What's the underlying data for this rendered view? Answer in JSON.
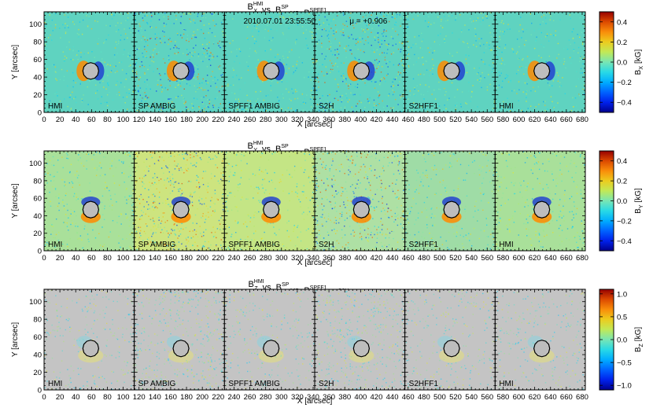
{
  "chart_data": [
    {
      "type": "heatmap",
      "component": "X",
      "title_parts": [
        "B",
        "HMI",
        "vs",
        "B",
        "SP",
        "vs",
        "B",
        "SPFF1",
        "vs",
        "B",
        "S2H",
        "vs",
        "B",
        "S2HFF1",
        "vs",
        "B",
        "HMI"
      ],
      "title_sub": "X",
      "annotations": [
        "2010.07.01  23:55:50",
        "μ = +0.906"
      ],
      "panel_labels": [
        "HMI",
        "SP  AMBIG",
        "SPFF1  AMBIG",
        "S2H",
        "S2HFF1",
        "HMI"
      ],
      "xlabel": "X [arcsec]",
      "ylabel": "Y [arcsec]",
      "x_ticks": [
        0,
        20,
        40,
        60,
        80,
        100,
        120,
        140,
        160,
        180,
        200,
        220,
        240,
        260,
        280,
        300,
        320,
        340,
        360,
        380,
        400,
        420,
        440,
        460,
        480,
        500,
        520,
        540,
        560,
        580,
        600,
        620,
        640,
        660,
        680
      ],
      "y_ticks": [
        0,
        20,
        40,
        60,
        80,
        100
      ],
      "xlim": [
        0,
        684
      ],
      "ylim": [
        0,
        114
      ],
      "colorbar": {
        "label": "B",
        "sub": "X",
        "unit": "[kG]",
        "ticks": [
          0.4,
          0.2,
          0.0,
          -0.2,
          -0.4
        ],
        "range": [
          -0.5,
          0.5
        ]
      },
      "panel_x_ranges": [
        [
          0,
          114
        ],
        [
          114,
          228
        ],
        [
          228,
          342
        ],
        [
          342,
          456
        ],
        [
          456,
          570
        ],
        [
          570,
          684
        ]
      ],
      "spot_center": [
        59,
        47
      ],
      "spot_radius": 10
    },
    {
      "type": "heatmap",
      "component": "Y",
      "title_parts": [
        "B",
        "HMI",
        "vs",
        "B",
        "SP",
        "vs",
        "B",
        "SPFF1",
        "vs",
        "B",
        "S2H",
        "vs",
        "B",
        "S2HFF1",
        "vs",
        "B",
        "HMI"
      ],
      "title_sub": "Y",
      "annotations": [],
      "panel_labels": [
        "HMI",
        "SP  AMBIG",
        "SPFF1  AMBIG",
        "S2H",
        "S2HFF1",
        "HMI"
      ],
      "xlabel": "X [arcsec]",
      "ylabel": "Y [arcsec]",
      "x_ticks": [
        0,
        20,
        40,
        60,
        80,
        100,
        120,
        140,
        160,
        180,
        200,
        220,
        240,
        260,
        280,
        300,
        320,
        340,
        360,
        380,
        400,
        420,
        440,
        460,
        480,
        500,
        520,
        540,
        560,
        580,
        600,
        620,
        640,
        660,
        680
      ],
      "y_ticks": [
        0,
        20,
        40,
        60,
        80,
        100
      ],
      "xlim": [
        0,
        684
      ],
      "ylim": [
        0,
        114
      ],
      "colorbar": {
        "label": "B",
        "sub": "Y",
        "unit": "[kG]",
        "ticks": [
          0.4,
          0.2,
          0.0,
          -0.2,
          -0.4
        ],
        "range": [
          -0.5,
          0.5
        ]
      },
      "panel_x_ranges": [
        [
          0,
          114
        ],
        [
          114,
          228
        ],
        [
          228,
          342
        ],
        [
          342,
          456
        ],
        [
          456,
          570
        ],
        [
          570,
          684
        ]
      ],
      "spot_center": [
        59,
        47
      ],
      "spot_radius": 10
    },
    {
      "type": "heatmap",
      "component": "Z",
      "title_parts": [
        "B",
        "HMI",
        "vs",
        "B",
        "SP",
        "vs",
        "B",
        "SPFF1",
        "vs",
        "B",
        "S2H",
        "vs",
        "B",
        "S2HFF1",
        "vs",
        "B",
        "HMI"
      ],
      "title_sub": "Z",
      "annotations": [],
      "panel_labels": [
        "HMI",
        "SP  AMBIG",
        "SPFF1  AMBIG",
        "S2H",
        "S2HFF1",
        "HMI"
      ],
      "xlabel": "X [arcsec]",
      "ylabel": "Y [arcsec]",
      "x_ticks": [
        0,
        20,
        40,
        60,
        80,
        100,
        120,
        140,
        160,
        180,
        200,
        220,
        240,
        260,
        280,
        300,
        320,
        340,
        360,
        380,
        400,
        420,
        440,
        460,
        480,
        500,
        520,
        540,
        560,
        580,
        600,
        620,
        640,
        660,
        680
      ],
      "y_ticks": [
        0,
        20,
        40,
        60,
        80,
        100
      ],
      "xlim": [
        0,
        684
      ],
      "ylim": [
        0,
        114
      ],
      "colorbar": {
        "label": "B",
        "sub": "Z",
        "unit": "[kG]",
        "ticks": [
          1.0,
          0.5,
          0.0,
          -0.5,
          -1.0
        ],
        "range": [
          -1.1,
          1.1
        ]
      },
      "panel_x_ranges": [
        [
          0,
          114
        ],
        [
          114,
          228
        ],
        [
          228,
          342
        ],
        [
          342,
          456
        ],
        [
          456,
          570
        ],
        [
          570,
          684
        ]
      ],
      "spot_center": [
        59,
        47
      ],
      "spot_radius": 10
    }
  ],
  "colors": {
    "background_x": "#5fd3c0",
    "background_y_hmi": "#a9e09a",
    "background_y_sp": "#cde47f",
    "background_y_spff1": "#c4e585",
    "background_y_s2h": "#aee0a4",
    "background_y_s2hff1": "#9fdca6",
    "background_z": "#c4c4c4",
    "spot_fill": "#bdbdbd",
    "positive": "#ff8a00",
    "negative": "#1d3bd1"
  }
}
